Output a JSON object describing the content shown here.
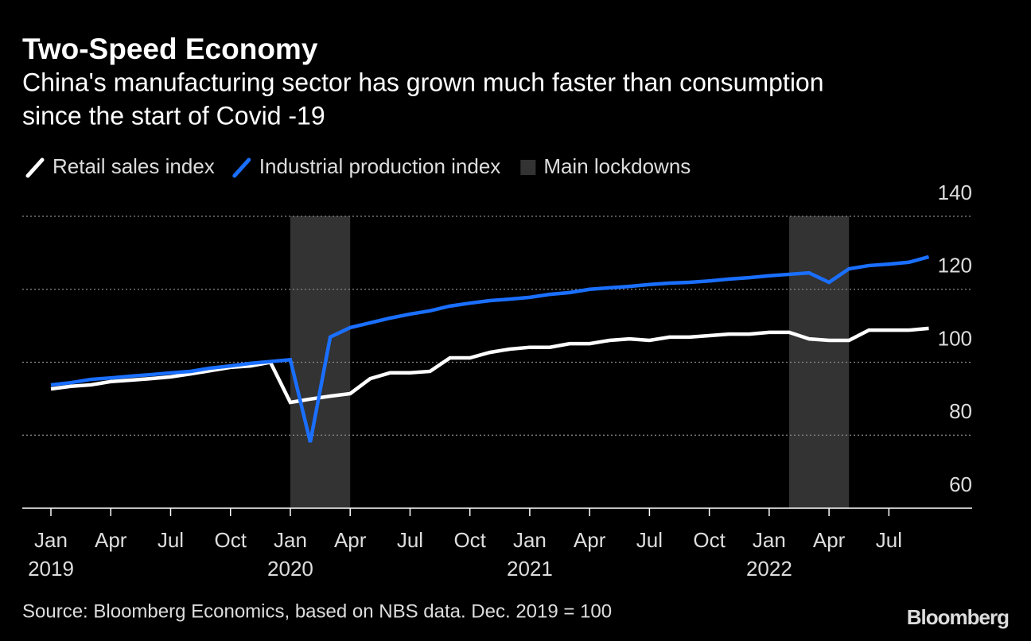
{
  "chart_data": {
    "type": "line",
    "title": "Two-Speed Economy",
    "subtitle": [
      "China's manufacturing sector has grown much faster than consumption",
      "since the start of Covid -19"
    ],
    "source": "Source: Bloomberg Economics, based on NBS data. Dec. 2019 = 100",
    "brand": "Bloomberg",
    "x": [
      "2019-01",
      "2019-02",
      "2019-03",
      "2019-04",
      "2019-05",
      "2019-06",
      "2019-07",
      "2019-08",
      "2019-09",
      "2019-10",
      "2019-11",
      "2019-12",
      "2020-01",
      "2020-02",
      "2020-03",
      "2020-04",
      "2020-05",
      "2020-06",
      "2020-07",
      "2020-08",
      "2020-09",
      "2020-10",
      "2020-11",
      "2020-12",
      "2021-01",
      "2021-02",
      "2021-03",
      "2021-04",
      "2021-05",
      "2021-06",
      "2021-07",
      "2021-08",
      "2021-09",
      "2021-10",
      "2021-11",
      "2021-12",
      "2022-01",
      "2022-02",
      "2022-03",
      "2022-04",
      "2022-05",
      "2022-06",
      "2022-07",
      "2022-08",
      "2022-09"
    ],
    "series": [
      {
        "name": "Retail sales index",
        "color": "#ffffff",
        "values": [
          92.7,
          93.4,
          93.8,
          94.7,
          95.1,
          95.5,
          96.0,
          96.8,
          97.7,
          98.6,
          99.0,
          100,
          89.0,
          89.9,
          90.7,
          91.4,
          95.5,
          97.1,
          97.1,
          97.5,
          101.2,
          101.2,
          102.7,
          103.6,
          104.1,
          104.1,
          105.1,
          105.1,
          106.0,
          106.4,
          106.0,
          106.9,
          106.9,
          107.3,
          107.7,
          107.7,
          108.2,
          108.2,
          106.4,
          106.0,
          106.0,
          108.8,
          108.8,
          108.8,
          109.3
        ]
      },
      {
        "name": "Industrial production index",
        "color": "#1a6fff",
        "values": [
          93.8,
          94.4,
          95.3,
          95.7,
          96.2,
          96.6,
          97.1,
          97.5,
          98.4,
          99.0,
          99.7,
          100.2,
          100.7,
          78.1,
          106.9,
          109.5,
          110.8,
          112.1,
          113.2,
          114.1,
          115.4,
          116.2,
          116.9,
          117.3,
          117.8,
          118.6,
          119.1,
          120.0,
          120.4,
          120.8,
          121.3,
          121.7,
          121.9,
          122.3,
          122.8,
          123.2,
          123.7,
          124.1,
          124.5,
          121.9,
          125.6,
          126.5,
          126.9,
          127.4,
          128.9
        ]
      }
    ],
    "shaded": {
      "name": "Main lockdowns",
      "color": "#333333",
      "ranges": [
        [
          "2020-01",
          "2020-04"
        ],
        [
          "2022-02",
          "2022-05"
        ]
      ]
    },
    "ylim": [
      60,
      140
    ],
    "yticks": [
      60,
      80,
      100,
      120,
      140
    ],
    "xticks": [
      {
        "value": "2019-01",
        "label": "Jan"
      },
      {
        "value": "2019-04",
        "label": "Apr"
      },
      {
        "value": "2019-07",
        "label": "Jul"
      },
      {
        "value": "2019-10",
        "label": "Oct"
      },
      {
        "value": "2020-01",
        "label": "Jan"
      },
      {
        "value": "2020-04",
        "label": "Apr"
      },
      {
        "value": "2020-07",
        "label": "Jul"
      },
      {
        "value": "2020-10",
        "label": "Oct"
      },
      {
        "value": "2021-01",
        "label": "Jan"
      },
      {
        "value": "2021-04",
        "label": "Apr"
      },
      {
        "value": "2021-07",
        "label": "Jul"
      },
      {
        "value": "2021-10",
        "label": "Oct"
      },
      {
        "value": "2022-01",
        "label": "Jan"
      },
      {
        "value": "2022-04",
        "label": "Apr"
      },
      {
        "value": "2022-07",
        "label": "Jul"
      }
    ],
    "xyears": [
      {
        "value": "2019-01",
        "label": "2019"
      },
      {
        "value": "2020-01",
        "label": "2020"
      },
      {
        "value": "2021-01",
        "label": "2021"
      },
      {
        "value": "2022-01",
        "label": "2022"
      }
    ],
    "grid": true
  }
}
